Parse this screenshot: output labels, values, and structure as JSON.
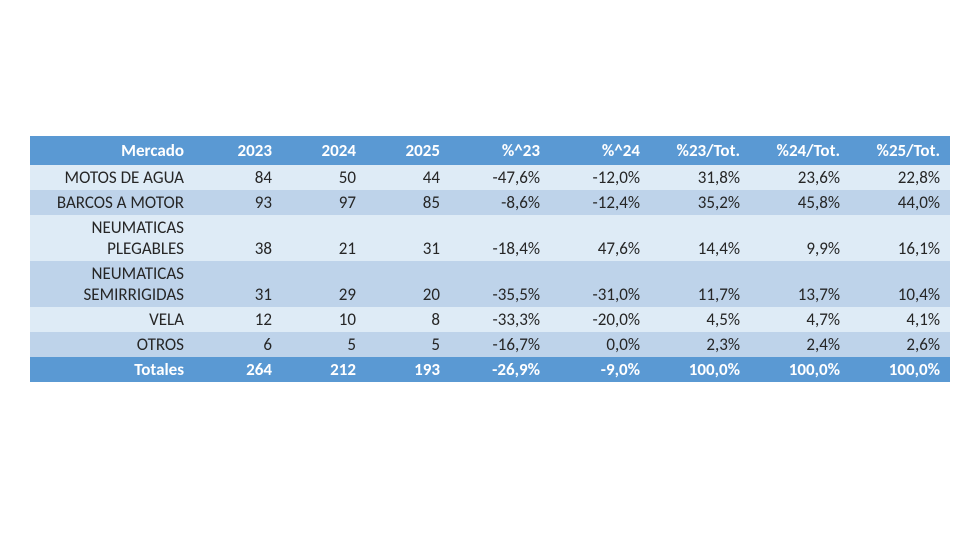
{
  "table": {
    "header_bg": "#5a99d3",
    "header_fg": "#ffffff",
    "band_a_bg": "#deebf6",
    "band_b_bg": "#bed3ea",
    "text_color": "#262626",
    "columns": [
      "Mercado",
      "2023",
      "2024",
      "2025",
      "%^23",
      "%^24",
      "%23/Tot.",
      "%24/Tot.",
      "%25/Tot."
    ],
    "rows": [
      {
        "band": "a",
        "label": "MOTOS DE AGUA",
        "cells": [
          "84",
          "50",
          "44",
          "-47,6%",
          "-12,0%",
          "31,8%",
          "23,6%",
          "22,8%"
        ]
      },
      {
        "band": "b",
        "label": "BARCOS A MOTOR",
        "cells": [
          "93",
          "97",
          "85",
          "-8,6%",
          "-12,4%",
          "35,2%",
          "45,8%",
          "44,0%"
        ]
      },
      {
        "band": "a",
        "label_top": "NEUMATICAS",
        "label_bottom": "PLEGABLES",
        "cells": [
          "38",
          "21",
          "31",
          "-18,4%",
          "47,6%",
          "14,4%",
          "9,9%",
          "16,1%"
        ]
      },
      {
        "band": "b",
        "label_top": "NEUMATICAS",
        "label_bottom": "SEMIRRIGIDAS",
        "cells": [
          "31",
          "29",
          "20",
          "-35,5%",
          "-31,0%",
          "11,7%",
          "13,7%",
          "10,4%"
        ]
      },
      {
        "band": "a",
        "label": "VELA",
        "cells": [
          "12",
          "10",
          "8",
          "-33,3%",
          "-20,0%",
          "4,5%",
          "4,7%",
          "4,1%"
        ]
      },
      {
        "band": "b",
        "label": "OTROS",
        "cells": [
          "6",
          "5",
          "5",
          "-16,7%",
          "0,0%",
          "2,3%",
          "2,4%",
          "2,6%"
        ]
      }
    ],
    "total": {
      "label": "Totales",
      "cells": [
        "264",
        "212",
        "193",
        "-26,9%",
        "-9,0%",
        "100,0%",
        "100,0%",
        "100,0%"
      ]
    }
  }
}
